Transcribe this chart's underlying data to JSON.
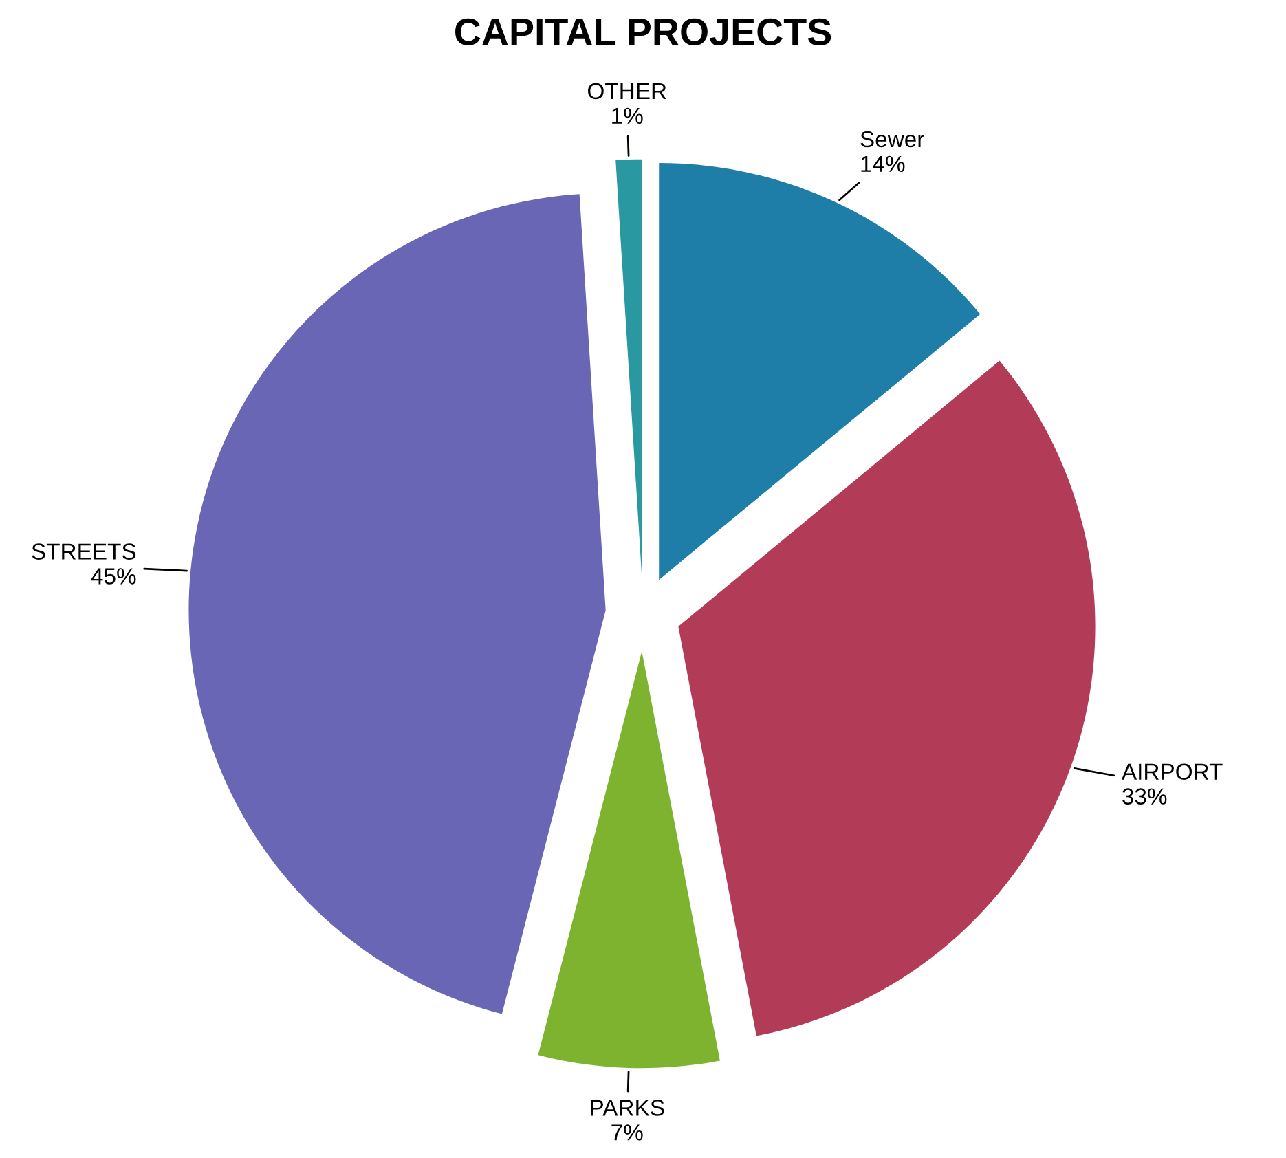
{
  "chart_data": {
    "type": "pie",
    "title": "CAPITAL PROJECTS",
    "categories": [
      "Sewer",
      "AIRPORT",
      "PARKS",
      "STREETS",
      "OTHER"
    ],
    "values": [
      14,
      33,
      7,
      45,
      1
    ],
    "colors": [
      "#1f7ea8",
      "#b23c58",
      "#7db32e",
      "#6a66b6",
      "#2a98a0"
    ],
    "value_labels": [
      "14%",
      "33%",
      "7%",
      "45%",
      "1%"
    ],
    "legend": false
  }
}
